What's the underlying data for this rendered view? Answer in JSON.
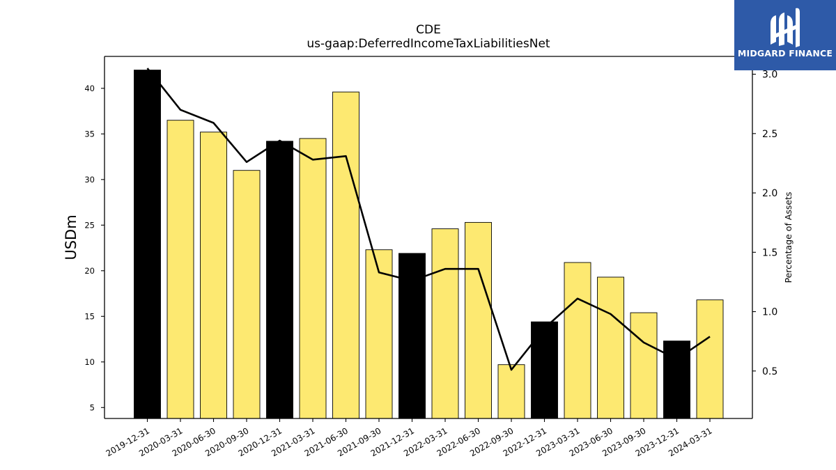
{
  "chart_data": {
    "type": "bar",
    "title": "CDE",
    "subtitle": "us-gaap:DeferredIncomeTaxLiabilitiesNet",
    "ylabel": "USDm",
    "ylabel_right": "Percentage of Assets",
    "ylim": [
      3.8,
      43.5
    ],
    "ylim_right": [
      0.1,
      3.15
    ],
    "yticks": [
      5,
      10,
      15,
      20,
      25,
      30,
      35,
      40
    ],
    "yticks_right": [
      "0.5",
      "1.0",
      "1.5",
      "2.0",
      "2.5",
      "3.0"
    ],
    "categories": [
      "2019-12-31",
      "2020-03-31",
      "2020-06-30",
      "2020-09-30",
      "2020-12-31",
      "2021-03-31",
      "2021-06-30",
      "2021-09-30",
      "2021-12-31",
      "2022-03-31",
      "2022-06-30",
      "2022-09-30",
      "2022-12-31",
      "2023-03-31",
      "2023-06-30",
      "2023-09-30",
      "2023-12-31",
      "2024-03-31"
    ],
    "series": [
      {
        "type": "bar",
        "values": [
          42.0,
          36.5,
          35.2,
          31.0,
          34.2,
          34.5,
          39.6,
          22.3,
          21.9,
          24.6,
          25.3,
          9.7,
          14.4,
          20.9,
          19.3,
          15.4,
          12.3,
          16.8
        ],
        "highlight": [
          true,
          false,
          false,
          false,
          true,
          false,
          false,
          false,
          true,
          false,
          false,
          false,
          true,
          false,
          false,
          false,
          true,
          false
        ],
        "color": "#fde971",
        "highlight_color": "#000000"
      },
      {
        "type": "line",
        "axis": "right",
        "values": [
          3.05,
          2.7,
          2.59,
          2.26,
          2.44,
          2.28,
          2.31,
          1.33,
          1.26,
          1.36,
          1.36,
          0.51,
          0.86,
          1.11,
          0.98,
          0.74,
          0.6,
          0.79
        ],
        "color": "#000000"
      }
    ],
    "grid": false
  },
  "logo": {
    "text": "MIDGARD FINANCE",
    "icon": "midgard-logo-icon",
    "background": "#2e5aa8"
  }
}
